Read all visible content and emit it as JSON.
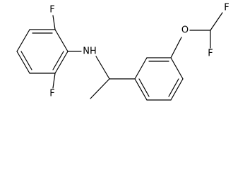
{
  "atoms": {
    "f_top_left": "F",
    "f_bottom_left": "F",
    "amine": "NH",
    "oxygen": "O",
    "f_top_right": "F",
    "f_right": "F"
  }
}
